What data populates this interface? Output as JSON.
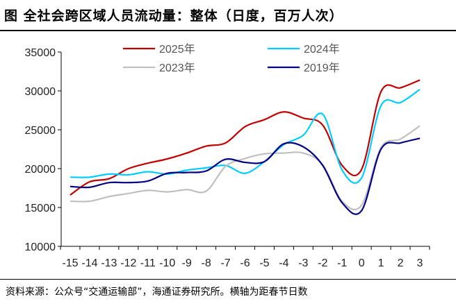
{
  "title": "图 全社会跨区域人员流动量：整体（日度，百万人次）",
  "source": "资料来源：公众号“交通运输部”，海通证券研究所。横轴为距春节日数",
  "chart_data": {
    "type": "line",
    "title": "全社会跨区域人员流动量：整体（日度，百万人次）",
    "xlabel": "横轴为距春节日数",
    "ylabel": "",
    "x": [
      -15,
      -14,
      -13,
      -12,
      -11,
      -10,
      -9,
      -8,
      -7,
      -6,
      -5,
      -4,
      -3,
      -2,
      -1,
      0,
      1,
      2,
      3
    ],
    "x_tick_labels": [
      "-15",
      "-14",
      "-13",
      "-12",
      "-11",
      "-10",
      "-9",
      "-8",
      "-7",
      "-6",
      "-5",
      "-4",
      "-3",
      "-2",
      "-1",
      "0",
      "1",
      "2",
      "3"
    ],
    "ylim": [
      10000,
      35000
    ],
    "y_ticks": [
      "10000",
      "15000",
      "20000",
      "25000",
      "30000",
      "35000"
    ],
    "grid": false,
    "legend_position": "top",
    "series": [
      {
        "name": "2025年",
        "color": "#C00000",
        "values": [
          16600,
          18300,
          18700,
          20000,
          20700,
          21250,
          22000,
          22900,
          23300,
          25400,
          26300,
          27300,
          26500,
          25600,
          20400,
          19900,
          29900,
          30400,
          31400
        ]
      },
      {
        "name": "2024年",
        "color": "#00CCFF",
        "values": [
          18900,
          18900,
          19300,
          19200,
          19600,
          19300,
          19800,
          20100,
          20400,
          19400,
          20900,
          23100,
          24300,
          27000,
          19800,
          18800,
          28100,
          28500,
          30200
        ]
      },
      {
        "name": "2023年",
        "color": "#BFBFBF",
        "values": [
          15800,
          15800,
          16400,
          16800,
          17200,
          17000,
          17300,
          17100,
          20300,
          21300,
          21900,
          22000,
          22000,
          20500,
          15800,
          15300,
          22700,
          23800,
          25500
        ]
      },
      {
        "name": "2019年",
        "color": "#000080",
        "values": [
          17700,
          17600,
          18200,
          18200,
          18400,
          19400,
          19500,
          19700,
          21200,
          20800,
          20900,
          23200,
          22800,
          20400,
          15600,
          14600,
          22500,
          23300,
          23900
        ]
      }
    ]
  }
}
